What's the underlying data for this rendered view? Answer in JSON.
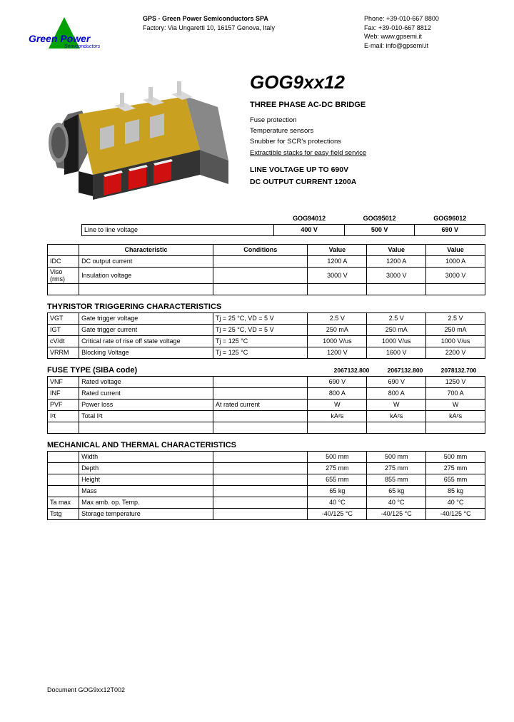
{
  "logo": {
    "brand": "Green Power",
    "sub": "Semiconductors"
  },
  "company": {
    "name": "GPS - Green Power Semiconductors SPA",
    "address": "Factory: Via Ungaretti 10, 16157  Genova, Italy"
  },
  "contact": {
    "phone": "Phone: +39-010-667 8800",
    "fax": "Fax:   +39-010-667 8812",
    "web": "Web:   www.gpsemi.it",
    "email": "E-mail: info@gpsemi.it"
  },
  "product": {
    "title": "GOG9xx12",
    "subtitle": "THREE PHASE AC-DC BRIDGE",
    "features": [
      "Fuse protection",
      "Temperature sensors",
      "Snubber for SCR's protections",
      "Extractible stacks for easy field service"
    ],
    "spec1": "LINE VOLTAGE UP TO 690V",
    "spec2": "DC OUTPUT CURRENT 1200A"
  },
  "variants": {
    "headers": [
      "GOG94012",
      "GOG95012",
      "GOG96012"
    ],
    "row_label": "Line to line voltage",
    "values": [
      "400 V",
      "500 V",
      "690 V"
    ]
  },
  "main_table": {
    "headers": [
      "Characteristic",
      "Conditions",
      "Value",
      "Value",
      "Value"
    ],
    "rows": [
      {
        "sym": "IDC",
        "char": "DC output  current",
        "cond": "",
        "v": [
          "1200 A",
          "1200 A",
          "1000 A"
        ]
      },
      {
        "sym": "Viso (rms)",
        "char": "Insulation  voltage",
        "cond": "",
        "v": [
          "3000 V",
          "3000 V",
          "3000 V"
        ]
      },
      {
        "sym": "",
        "char": "",
        "cond": "",
        "v": [
          "",
          "",
          ""
        ]
      }
    ]
  },
  "thyristor": {
    "title": "THYRISTOR TRIGGERING CHARACTERISTICS",
    "rows": [
      {
        "sym": "VGT",
        "char": "Gate trigger voltage",
        "cond": "Tj = 25 °C, VD = 5 V",
        "v": [
          "2.5 V",
          "2.5 V",
          "2.5 V"
        ]
      },
      {
        "sym": "IGT",
        "char": "Gate trigger current",
        "cond": "Tj = 25 °C, VD = 5 V",
        "v": [
          "250 mA",
          "250 mA",
          "250 mA"
        ]
      },
      {
        "sym": "cV/dt",
        "char": "Critical rate of rise off state voltage",
        "cond": "Tj = 125 °C",
        "v": [
          "1000 V/us",
          "1000 V/us",
          "1000 V/us"
        ]
      },
      {
        "sym": "VRRM",
        "char": "Blocking Voltage",
        "cond": "Tj = 125 °C",
        "v": [
          "1200 V",
          "1600 V",
          "2200 V"
        ]
      }
    ]
  },
  "fuse": {
    "title": "FUSE TYPE  (SIBA code)",
    "codes": [
      "2067132.800",
      "2067132.800",
      "2078132.700"
    ],
    "rows": [
      {
        "sym": "VNF",
        "char": "Rated voltage",
        "cond": "",
        "v": [
          "690 V",
          "690 V",
          "1250 V"
        ]
      },
      {
        "sym": "INF",
        "char": "Rated current",
        "cond": "",
        "v": [
          "800 A",
          "800 A",
          "700 A"
        ]
      },
      {
        "sym": "PVF",
        "char": "Power loss",
        "cond": "At rated current",
        "v": [
          "W",
          "W",
          "W"
        ]
      },
      {
        "sym": "I²t",
        "char": "Total I²t",
        "cond": "",
        "v": [
          "kA²s",
          "kA²s",
          "kA²s"
        ]
      },
      {
        "sym": "",
        "char": "",
        "cond": "",
        "v": [
          "",
          "",
          ""
        ]
      }
    ]
  },
  "mech": {
    "title": "MECHANICAL AND THERMAL CHARACTERISTICS",
    "rows": [
      {
        "sym": "",
        "char": "Width",
        "cond": "",
        "v": [
          "500 mm",
          "500 mm",
          "500 mm"
        ]
      },
      {
        "sym": "",
        "char": "Depth",
        "cond": "",
        "v": [
          "275 mm",
          "275 mm",
          "275 mm"
        ]
      },
      {
        "sym": "",
        "char": "Height",
        "cond": "",
        "v": [
          "655 mm",
          "855 mm",
          "655 mm"
        ]
      },
      {
        "sym": "",
        "char": "Mass",
        "cond": "",
        "v": [
          "65 kg",
          "65 kg",
          "85 kg"
        ]
      },
      {
        "sym": "Ta max",
        "char": "Max amb. op.  Temp.",
        "cond": "",
        "v": [
          "40 °C",
          "40 °C",
          "40 °C"
        ]
      },
      {
        "sym": "Tstg",
        "char": "Storage temperature",
        "cond": "",
        "v": [
          "-40/125 °C",
          "-40/125 °C",
          "-40/125 °C"
        ]
      }
    ]
  },
  "footer": "Document GOG9xx12T002"
}
